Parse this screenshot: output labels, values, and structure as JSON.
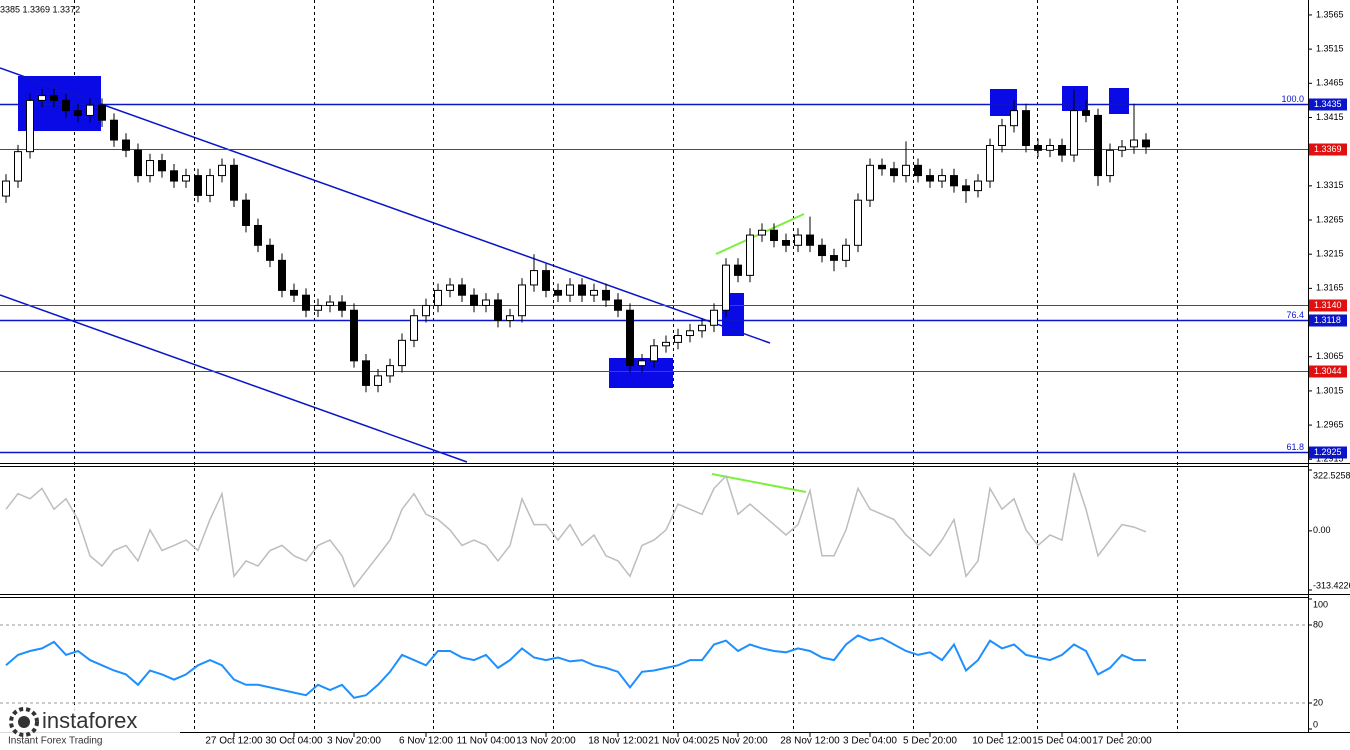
{
  "chart_data": [
    {
      "type": "candlestick",
      "header": "3385 1.3369 1.3372",
      "open": [
        1.33,
        1.3322,
        1.3365,
        1.344,
        1.3447,
        1.344,
        1.3425,
        1.3418,
        1.3433,
        1.3411,
        1.3382,
        1.3367,
        1.333,
        1.3352,
        1.3337,
        1.3322,
        1.333,
        1.3301,
        1.333,
        1.3345,
        1.3294,
        1.3257,
        1.3228,
        1.3206,
        1.3162,
        1.3155,
        1.3133,
        1.314,
        1.3145,
        1.3133,
        1.3059,
        1.3023,
        1.3037,
        1.3052,
        1.3089,
        1.3125,
        1.314,
        1.3162,
        1.317,
        1.3155,
        1.314,
        1.3148,
        1.3118,
        1.3125,
        1.317,
        1.3191,
        1.3162,
        1.3155,
        1.317,
        1.3155,
        1.3162,
        1.3148,
        1.3133,
        1.3052,
        1.3059,
        1.3081,
        1.3086,
        1.3096,
        1.3103,
        1.3111,
        1.3133,
        1.3199,
        1.3184,
        1.3243,
        1.325,
        1.3235,
        1.3228,
        1.3243,
        1.3228,
        1.3213,
        1.3206,
        1.3228,
        1.3294,
        1.3345,
        1.334,
        1.333,
        1.3345,
        1.333,
        1.3322,
        1.333,
        1.3315,
        1.3308,
        1.3322,
        1.3374,
        1.3403,
        1.3425,
        1.3374,
        1.3367,
        1.3374,
        1.336,
        1.3425,
        1.3418,
        1.333,
        1.3367,
        1.3372,
        1.3382
      ],
      "high": [
        1.3332,
        1.3375,
        1.345,
        1.3457,
        1.3457,
        1.345,
        1.3435,
        1.3443,
        1.3443,
        1.3421,
        1.3392,
        1.3377,
        1.3362,
        1.3362,
        1.3347,
        1.334,
        1.334,
        1.334,
        1.3355,
        1.3355,
        1.3304,
        1.3267,
        1.3238,
        1.3216,
        1.3172,
        1.3165,
        1.315,
        1.3155,
        1.3155,
        1.3143,
        1.3069,
        1.3047,
        1.3062,
        1.3099,
        1.3135,
        1.315,
        1.3172,
        1.318,
        1.318,
        1.3165,
        1.3158,
        1.3158,
        1.3135,
        1.318,
        1.3215,
        1.3201,
        1.3172,
        1.318,
        1.318,
        1.3172,
        1.3172,
        1.3158,
        1.3143,
        1.3069,
        1.3091,
        1.3096,
        1.3106,
        1.3113,
        1.3121,
        1.3143,
        1.3209,
        1.3209,
        1.3253,
        1.326,
        1.326,
        1.3245,
        1.3253,
        1.327,
        1.3238,
        1.3223,
        1.3238,
        1.3304,
        1.3355,
        1.3355,
        1.335,
        1.338,
        1.3355,
        1.334,
        1.334,
        1.334,
        1.3325,
        1.3332,
        1.3384,
        1.3413,
        1.344,
        1.3435,
        1.3384,
        1.3384,
        1.3384,
        1.3455,
        1.344,
        1.3428,
        1.3377,
        1.3382,
        1.3435,
        1.3392
      ],
      "low": [
        1.329,
        1.3312,
        1.3355,
        1.343,
        1.343,
        1.3415,
        1.3408,
        1.3408,
        1.3401,
        1.3372,
        1.3357,
        1.332,
        1.332,
        1.3327,
        1.3312,
        1.3312,
        1.3291,
        1.3291,
        1.332,
        1.3284,
        1.3247,
        1.3218,
        1.3196,
        1.3152,
        1.3145,
        1.3123,
        1.3123,
        1.313,
        1.3123,
        1.3049,
        1.3013,
        1.3013,
        1.3027,
        1.3042,
        1.3079,
        1.3115,
        1.313,
        1.3152,
        1.3145,
        1.313,
        1.313,
        1.3108,
        1.3108,
        1.3115,
        1.316,
        1.3152,
        1.3145,
        1.3145,
        1.3145,
        1.3145,
        1.3138,
        1.3123,
        1.3042,
        1.3042,
        1.3049,
        1.3071,
        1.3076,
        1.3086,
        1.3093,
        1.3101,
        1.3123,
        1.3174,
        1.3174,
        1.3233,
        1.3225,
        1.3218,
        1.3218,
        1.3218,
        1.3203,
        1.319,
        1.3196,
        1.3218,
        1.3284,
        1.333,
        1.332,
        1.332,
        1.332,
        1.3312,
        1.3312,
        1.3305,
        1.329,
        1.3298,
        1.3312,
        1.3364,
        1.3393,
        1.3364,
        1.3357,
        1.3357,
        1.335,
        1.335,
        1.3408,
        1.3315,
        1.332,
        1.3357,
        1.3362,
        1.3362
      ],
      "close": [
        1.3322,
        1.3365,
        1.344,
        1.3447,
        1.344,
        1.3425,
        1.3418,
        1.3433,
        1.3411,
        1.3382,
        1.3367,
        1.333,
        1.3352,
        1.3337,
        1.3322,
        1.333,
        1.3301,
        1.333,
        1.3345,
        1.3294,
        1.3257,
        1.3228,
        1.3206,
        1.3162,
        1.3155,
        1.3133,
        1.314,
        1.3145,
        1.3133,
        1.3059,
        1.3023,
        1.3037,
        1.3052,
        1.3089,
        1.3125,
        1.314,
        1.3162,
        1.317,
        1.3155,
        1.314,
        1.3148,
        1.3118,
        1.3125,
        1.317,
        1.3191,
        1.3162,
        1.3155,
        1.317,
        1.3155,
        1.3162,
        1.3148,
        1.3133,
        1.3052,
        1.3059,
        1.3081,
        1.3086,
        1.3096,
        1.3103,
        1.3111,
        1.3133,
        1.3199,
        1.3184,
        1.3243,
        1.325,
        1.3235,
        1.3228,
        1.3243,
        1.3228,
        1.3213,
        1.3206,
        1.3228,
        1.3294,
        1.3345,
        1.334,
        1.333,
        1.3345,
        1.333,
        1.3322,
        1.333,
        1.3315,
        1.3308,
        1.3322,
        1.3374,
        1.3403,
        1.3425,
        1.3374,
        1.3367,
        1.3374,
        1.336,
        1.3425,
        1.3418,
        1.333,
        1.3367,
        1.3372,
        1.3382,
        1.3372
      ],
      "xlim": [
        -0.5,
        108.5
      ],
      "xticks": [
        {
          "value": 19,
          "label": "27 Oct 12:00"
        },
        {
          "value": 24,
          "label": "30 Oct 04:00"
        },
        {
          "value": 29,
          "label": "3 Nov 20:00"
        },
        {
          "value": 35,
          "label": "6 Nov 12:00"
        },
        {
          "value": 40,
          "label": "11 Nov 04:00"
        },
        {
          "value": 45,
          "label": "13 Nov 20:00"
        },
        {
          "value": 51,
          "label": "18 Nov 12:00"
        },
        {
          "value": 56,
          "label": "21 Nov 04:00"
        },
        {
          "value": 61,
          "label": "25 Nov 20:00"
        },
        {
          "value": 67,
          "label": "28 Nov 12:00"
        },
        {
          "value": 72,
          "label": "3 Dec 04:00"
        },
        {
          "value": 77,
          "label": "5 Dec 20:00"
        },
        {
          "value": 83,
          "label": "10 Dec 12:00"
        },
        {
          "value": 88,
          "label": "15 Dec 04:00"
        },
        {
          "value": 93,
          "label": "17 Dec 20:00"
        }
      ],
      "ylim": [
        1.2911,
        1.3581
      ],
      "yticks": [
        1.2915,
        1.2965,
        1.3015,
        1.3065,
        1.3165,
        1.3215,
        1.3265,
        1.3315,
        1.3415,
        1.3465,
        1.3515,
        1.3565
      ],
      "levels": [
        {
          "value": 1.3435,
          "color": "#0a14c8",
          "tag": "100.0"
        },
        {
          "value": 1.3369,
          "color": "#e01010"
        },
        {
          "value": 1.314,
          "label": "1.3140",
          "color": "#e01010"
        },
        {
          "value": 1.3118,
          "color": "#0a14c8",
          "tag": "76.4"
        },
        {
          "value": 1.3044,
          "color": "#e01010"
        },
        {
          "value": 1.2925,
          "color": "#0a14c8",
          "tag": "61.8"
        }
      ]
    },
    {
      "type": "line",
      "color": "#bdbdbd",
      "values": [
        115,
        197,
        170,
        225,
        115,
        170,
        60,
        -132,
        -186,
        -104,
        -77,
        -159,
        5,
        -104,
        -77,
        -49,
        -104,
        60,
        197,
        -241,
        -159,
        -186,
        -104,
        -77,
        -132,
        -159,
        -77,
        -49,
        -132,
        -296,
        -214,
        -132,
        -49,
        115,
        197,
        88,
        60,
        5,
        -77,
        -49,
        -77,
        -159,
        -77,
        170,
        33,
        33,
        -49,
        33,
        -77,
        -22,
        -132,
        -159,
        -241,
        -77,
        -49,
        5,
        142,
        115,
        88,
        225,
        290,
        88,
        142,
        88,
        33,
        -22,
        33,
        214,
        -132,
        -132,
        5,
        225,
        115,
        88,
        60,
        -22,
        -77,
        -132,
        -49,
        60,
        -241,
        -159,
        225,
        115,
        170,
        5,
        -77,
        -22,
        -49,
        307,
        115,
        -132,
        -49,
        33,
        20,
        -5
      ],
      "ylim": [
        -313.4226,
        322.5258
      ],
      "yticks": [
        -313.4226,
        {
          "value": 0,
          "label": "0.00"
        },
        322.5258
      ]
    },
    {
      "type": "line",
      "color": "#1e8fff",
      "values": [
        49,
        57,
        60,
        62,
        67,
        57,
        60,
        53,
        49,
        45,
        42,
        34,
        45,
        42,
        38,
        42,
        49,
        53,
        49,
        38,
        34,
        34,
        32,
        30,
        28,
        26,
        34,
        30,
        34,
        24,
        26,
        34,
        44,
        57,
        53,
        49,
        60,
        60,
        55,
        53,
        57,
        47,
        53,
        62,
        55,
        53,
        55,
        52,
        53,
        49,
        47,
        44,
        32,
        44,
        45,
        47,
        49,
        53,
        53,
        65,
        68,
        60,
        65,
        62,
        60,
        59,
        62,
        60,
        55,
        53,
        65,
        72,
        68,
        70,
        65,
        60,
        57,
        59,
        53,
        65,
        45,
        53,
        68,
        62,
        65,
        57,
        55,
        53,
        57,
        65,
        60,
        42,
        47,
        57,
        53,
        53
      ],
      "ylim": [
        0,
        100
      ],
      "yticks": [
        0,
        20,
        80,
        100
      ],
      "grid": [
        20,
        80
      ]
    }
  ],
  "branding": {
    "name": "instaforex",
    "tagline": "Instant Forex Trading"
  }
}
